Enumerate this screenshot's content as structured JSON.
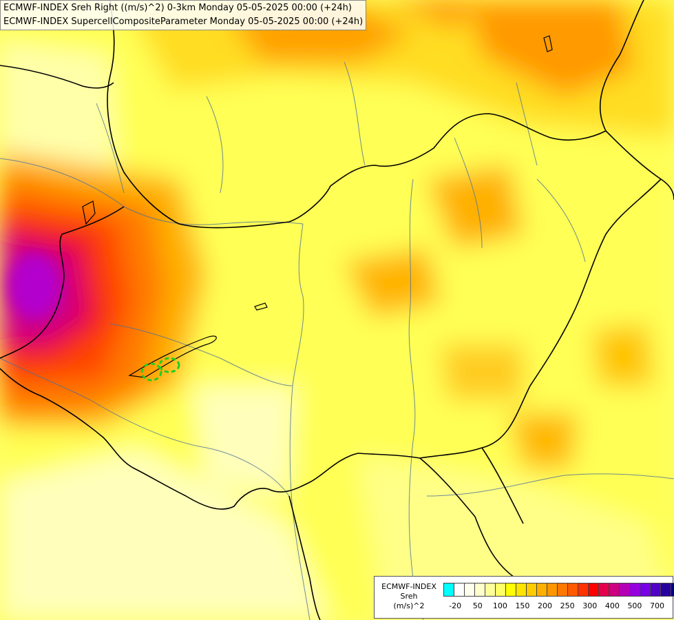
{
  "header": {
    "line1": "ECMWF-INDEX Sreh Right ((m/s)^2) 0-3km Monday 05-05-2025 00:00 (+24h)",
    "line2": "ECMWF-INDEX SupercellCompositeParameter Monday 05-05-2025 00:00 (+24h)"
  },
  "legend": {
    "line1": "ECMWF-INDEX",
    "line2": "Sreh",
    "line3": "(m/s)^2",
    "colors": [
      "#00ffff",
      "#ffffff",
      "#ffffee",
      "#ffffcc",
      "#ffff99",
      "#ffff66",
      "#ffff00",
      "#ffe400",
      "#ffcc00",
      "#ffb000",
      "#ff9600",
      "#ff7800",
      "#ff5a00",
      "#ff3200",
      "#ff0000",
      "#e6004c",
      "#cc0080",
      "#b400b4",
      "#9600dc",
      "#7800e6",
      "#5000c8",
      "#2800a0",
      "#000080"
    ],
    "ticks": [
      {
        "label": "-20",
        "index": 0.5
      },
      {
        "label": "50",
        "index": 2.5
      },
      {
        "label": "100",
        "index": 4.5
      },
      {
        "label": "150",
        "index": 6.5
      },
      {
        "label": "200",
        "index": 8.5
      },
      {
        "label": "250",
        "index": 10.5
      },
      {
        "label": "300",
        "index": 12.5
      },
      {
        "label": "400",
        "index": 14.5
      },
      {
        "label": "500",
        "index": 16.5
      },
      {
        "label": "700",
        "index": 18.5
      }
    ]
  }
}
